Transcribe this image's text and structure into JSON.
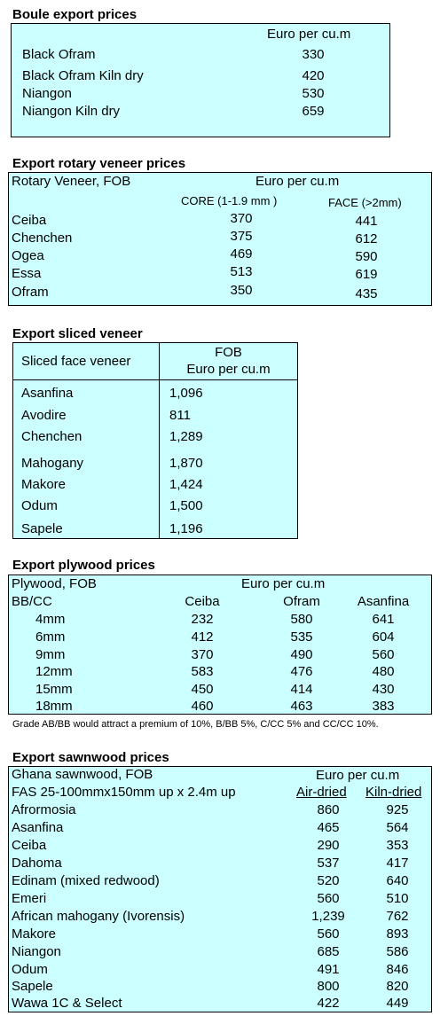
{
  "boule": {
    "heading": "Boule export prices",
    "unit": "Euro per cu.m",
    "rows": [
      {
        "name": "Black Ofram",
        "value": "330"
      },
      {
        "name": "Black Ofram  Kiln dry",
        "value": "420"
      },
      {
        "name": "Niangon",
        "value": "530"
      },
      {
        "name": "Niangon Kiln dry",
        "value": "659"
      }
    ]
  },
  "rotary": {
    "heading": "Export rotary veneer prices",
    "label": "Rotary Veneer,  FOB",
    "unit": "Euro  per cu.m",
    "col_core": "CORE (1-1.9 mm )",
    "col_face": "FACE (>2mm)",
    "rows": [
      {
        "name": "Ceiba",
        "core": "370",
        "face": "441"
      },
      {
        "name": "Chenchen",
        "core": "375",
        "face": "612"
      },
      {
        "name": "Ogea",
        "core": "469",
        "face": "590"
      },
      {
        "name": "Essa",
        "core": "513",
        "face": "619"
      },
      {
        "name": "Ofram",
        "core": "350",
        "face": "435"
      }
    ]
  },
  "sliced": {
    "heading": "Export sliced veneer",
    "label": "Sliced face veneer",
    "col_line1": "FOB",
    "col_line2": "Euro per cu.m",
    "rows": [
      {
        "name": "Asanfina",
        "value": "1,096"
      },
      {
        "name": "Avodire",
        "value": "811"
      },
      {
        "name": "Chenchen",
        "value": "1,289"
      },
      {
        "name": "Mahogany",
        "value": "1,870"
      },
      {
        "name": "Makore",
        "value": "1,424"
      },
      {
        "name": "Odum",
        "value": "1,500"
      },
      {
        "name": "Sapele",
        "value": "1,196"
      }
    ]
  },
  "plywood": {
    "heading": "Export plywood prices",
    "label": "Plywood, FOB",
    "unit": "Euro per cu.m",
    "grade": "BB/CC",
    "cols": [
      "Ceiba",
      "Ofram",
      "Asanfina"
    ],
    "rows": [
      {
        "size": "4mm",
        "values": [
          "232",
          "580",
          "641"
        ]
      },
      {
        "size": "6mm",
        "values": [
          "412",
          "535",
          "604"
        ]
      },
      {
        "size": "9mm",
        "values": [
          "370",
          "490",
          "560"
        ]
      },
      {
        "size": "12mm",
        "values": [
          "583",
          "476",
          "480"
        ]
      },
      {
        "size": "15mm",
        "values": [
          "450",
          "414",
          "430"
        ]
      },
      {
        "size": "18mm",
        "values": [
          "460",
          "463",
          "383"
        ]
      }
    ],
    "note": "Grade AB/BB would attract a premium of 10%, B/BB 5%, C/CC 5% and CC/CC 10%."
  },
  "sawn": {
    "heading": "Export sawnwood prices",
    "label": "Ghana sawnwood, FOB",
    "unit": "Euro per cu.m",
    "spec": "FAS 25-100mmx150mm up x 2.4m up",
    "col_air": "Air-dried",
    "col_kiln": "Kiln-dried",
    "rows": [
      {
        "name": "Afrormosia",
        "air": "860",
        "kiln": "925"
      },
      {
        "name": "Asanfina",
        "air": "465",
        "kiln": "564"
      },
      {
        "name": "Ceiba",
        "air": "290",
        "kiln": "353"
      },
      {
        "name": "Dahoma",
        "air": "537",
        "kiln": "417"
      },
      {
        "name": "Edinam (mixed redwood)",
        "air": "520",
        "kiln": "640"
      },
      {
        "name": "Emeri",
        "air": "560",
        "kiln": "510"
      },
      {
        "name": "African mahogany (Ivorensis)",
        "air": "1,239",
        "kiln": "762"
      },
      {
        "name": "Makore",
        "air": "560",
        "kiln": "893"
      },
      {
        "name": "Niangon",
        "air": "685",
        "kiln": "586"
      },
      {
        "name": "Odum",
        "air": "491",
        "kiln": "846"
      },
      {
        "name": "Sapele",
        "air": "800",
        "kiln": "820"
      },
      {
        "name": "Wawa 1C & Select",
        "air": "422",
        "kiln": "449"
      }
    ]
  }
}
